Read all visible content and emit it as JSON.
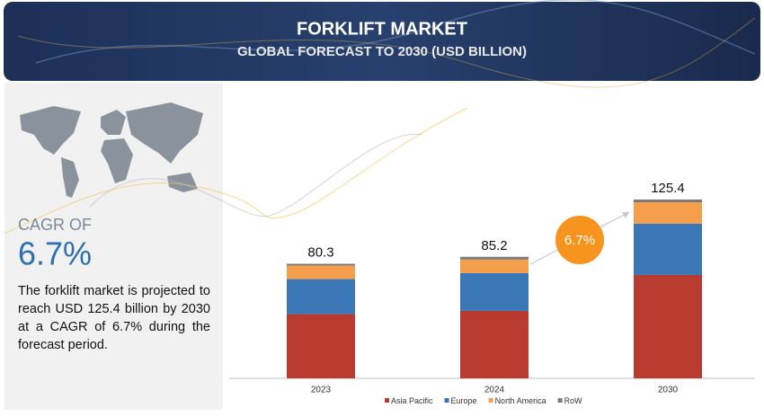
{
  "header": {
    "title": "FORKLIFT MARKET",
    "subtitle": "GLOBAL FORECAST TO 2030 (USD BILLION)"
  },
  "summary": {
    "cagr_label": "CAGR OF",
    "cagr_value": "6.7%",
    "text": "The forklift market is projected to reach USD 125.4 billion by 2030 at a CAGR of 6.7% during the forecast period."
  },
  "chart_data": {
    "type": "bar",
    "stacked": true,
    "categories": [
      "2023",
      "2024",
      "2030"
    ],
    "series": [
      {
        "name": "Asia Pacific",
        "color": "#b93a2e",
        "values": [
          45,
          47.3,
          72.5
        ]
      },
      {
        "name": "Europe",
        "color": "#3b77b7",
        "values": [
          24.6,
          26.5,
          36
        ]
      },
      {
        "name": "North America",
        "color": "#f59f4c",
        "values": [
          9.5,
          9.5,
          15
        ]
      },
      {
        "name": "RoW",
        "color": "#7a7a7a",
        "values": [
          1.2,
          1.9,
          1.9
        ]
      }
    ],
    "totals": [
      80.3,
      85.2,
      125.4
    ],
    "cagr_badge": "6.7%"
  }
}
